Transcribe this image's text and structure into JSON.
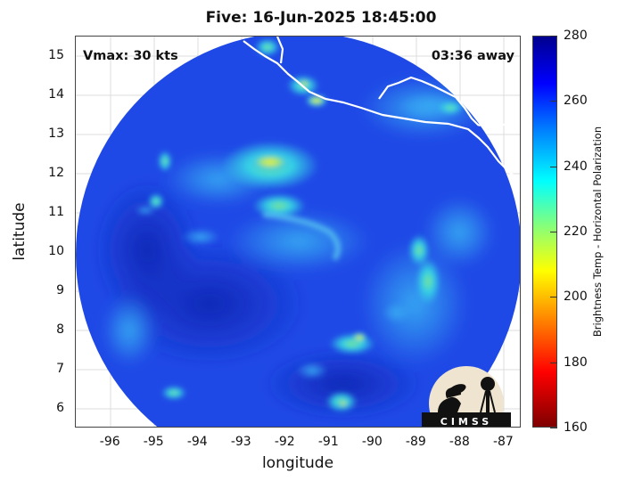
{
  "title": "Five: 16-Jun-2025 18:45:00",
  "annotations": {
    "vmax": "Vmax: 30 kts",
    "away": "03:36 away"
  },
  "logo_text": "CIMSS",
  "axes": {
    "xlabel": "longitude",
    "ylabel": "latitude",
    "xlim": [
      -96.8,
      -86.6
    ],
    "ylim": [
      5.5,
      15.5
    ],
    "xticks": [
      "-96",
      "-95",
      "-94",
      "-93",
      "-92",
      "-91",
      "-90",
      "-89",
      "-88",
      "-87"
    ],
    "yticks": [
      "6",
      "7",
      "8",
      "9",
      "10",
      "11",
      "12",
      "13",
      "14",
      "15"
    ],
    "grid": true
  },
  "colorbar": {
    "label": "Brightness Temp - Horizontal Polarization",
    "range": [
      160,
      280
    ],
    "ticks": [
      "160",
      "180",
      "200",
      "220",
      "240",
      "260",
      "280"
    ],
    "colormap": "jet"
  },
  "colors": {
    "background_field": "#1f49e6",
    "warm_deep_blue": "#1530c8",
    "cool_cyan": "#2fd5e8",
    "cool_green": "#8fe070",
    "cool_yellow": "#e8f040",
    "coastline": "#ffffff"
  }
}
